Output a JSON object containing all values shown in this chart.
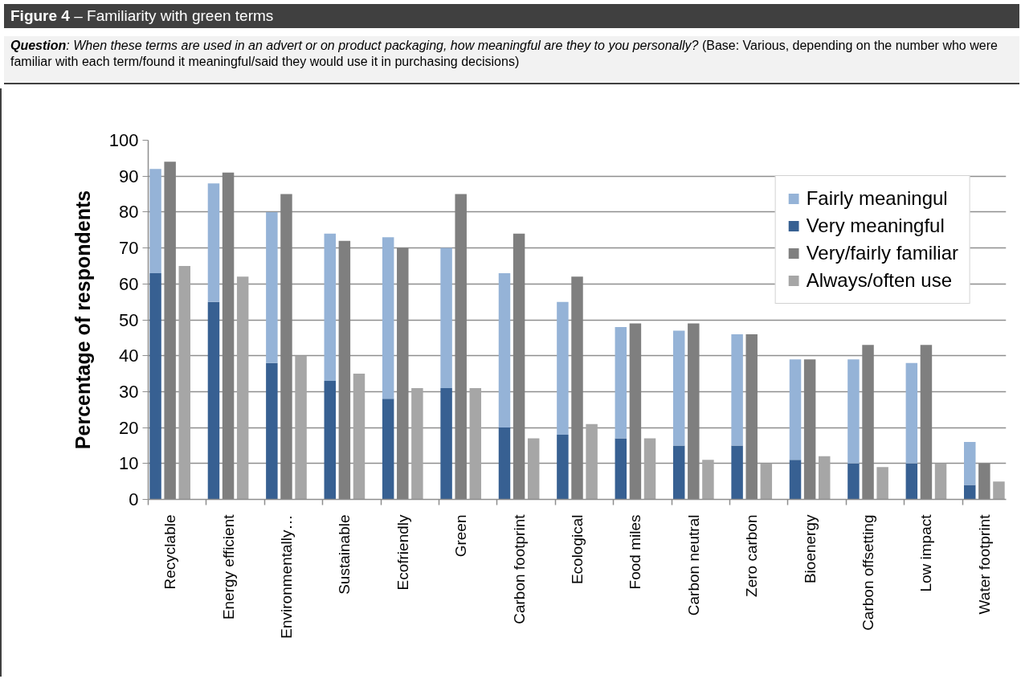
{
  "chart_data": {
    "type": "bar",
    "title": "Figure 4 – Familiarity with green terms",
    "subtitle": "Question: When these terms are used in an advert or on product packaging, how meaningful are they to you personally? (Base: Various, depending on the number who were familiar with each term/found it meaningful/said they would use it in purchasing decisions)",
    "ylabel": "Percentage of respondents",
    "categories": [
      null,
      "Recyclable",
      null,
      null,
      null,
      "Energy efficient",
      null,
      null,
      null,
      "Environmentally…",
      null,
      null,
      null,
      "Sustainable",
      null,
      null,
      null,
      "Ecofriendly",
      null,
      null,
      null,
      "Green",
      null,
      null,
      null,
      "Carbon footprint",
      null,
      null,
      null,
      "Ecological",
      null,
      null,
      null,
      "Food miles",
      null,
      null,
      null,
      "Carbon neutral",
      null,
      null,
      null,
      "Zero carbon",
      null,
      null,
      null,
      "Bioenergy",
      null,
      null,
      null,
      "Carbon offsetting",
      null,
      null,
      null,
      "Low impact",
      null,
      null,
      null,
      "Water footprint",
      null
    ],
    "stacked": true,
    "series": [
      {
        "name": "Very meaningful",
        "color": "#376092",
        "values": [
          63,
          null,
          null,
          null,
          55,
          null,
          null,
          null,
          38,
          null,
          null,
          null,
          33,
          null,
          null,
          null,
          28,
          null,
          null,
          null,
          31,
          null,
          null,
          null,
          20,
          null,
          null,
          null,
          18,
          null,
          null,
          null,
          17,
          null,
          null,
          null,
          15,
          null,
          null,
          null,
          15,
          null,
          null,
          null,
          11,
          null,
          null,
          null,
          10,
          null,
          null,
          null,
          10,
          null,
          null,
          null,
          4,
          null,
          null
        ]
      },
      {
        "name": "Fairly meaningul",
        "color": "#95b3d7",
        "values": [
          29,
          null,
          null,
          null,
          33,
          null,
          null,
          null,
          42,
          null,
          null,
          null,
          41,
          null,
          null,
          null,
          45,
          null,
          null,
          null,
          39,
          null,
          null,
          null,
          43,
          null,
          null,
          null,
          37,
          null,
          null,
          null,
          31,
          null,
          null,
          null,
          32,
          null,
          null,
          null,
          31,
          null,
          null,
          null,
          28,
          null,
          null,
          null,
          29,
          null,
          null,
          null,
          28,
          null,
          null,
          null,
          12,
          null,
          null
        ]
      },
      {
        "name": "Very/fairly familiar",
        "color": "#7f7f7f",
        "values": [
          null,
          94,
          null,
          null,
          null,
          91,
          null,
          null,
          null,
          85,
          null,
          null,
          null,
          72,
          null,
          null,
          null,
          70,
          null,
          null,
          null,
          85,
          null,
          null,
          null,
          74,
          null,
          null,
          null,
          62,
          null,
          null,
          null,
          49,
          null,
          null,
          null,
          49,
          null,
          null,
          null,
          46,
          null,
          null,
          null,
          39,
          null,
          null,
          null,
          43,
          null,
          null,
          null,
          43,
          null,
          null,
          null,
          10,
          null
        ]
      },
      {
        "name": "Always/often use",
        "color": "#a6a6a6",
        "values": [
          null,
          null,
          65,
          null,
          null,
          null,
          62,
          null,
          null,
          null,
          40,
          null,
          null,
          null,
          35,
          null,
          null,
          null,
          31,
          null,
          null,
          null,
          31,
          null,
          null,
          null,
          17,
          null,
          null,
          null,
          21,
          null,
          null,
          null,
          17,
          null,
          null,
          null,
          11,
          null,
          null,
          null,
          10,
          null,
          null,
          null,
          12,
          null,
          null,
          null,
          9,
          null,
          null,
          null,
          10,
          null,
          null,
          null,
          5
        ]
      }
    ],
    "ylim": [
      0,
      100
    ],
    "yticks": [
      0,
      10,
      20,
      30,
      40,
      50,
      60,
      70,
      80,
      90,
      100
    ],
    "grid": "y",
    "legend": "top right"
  }
}
